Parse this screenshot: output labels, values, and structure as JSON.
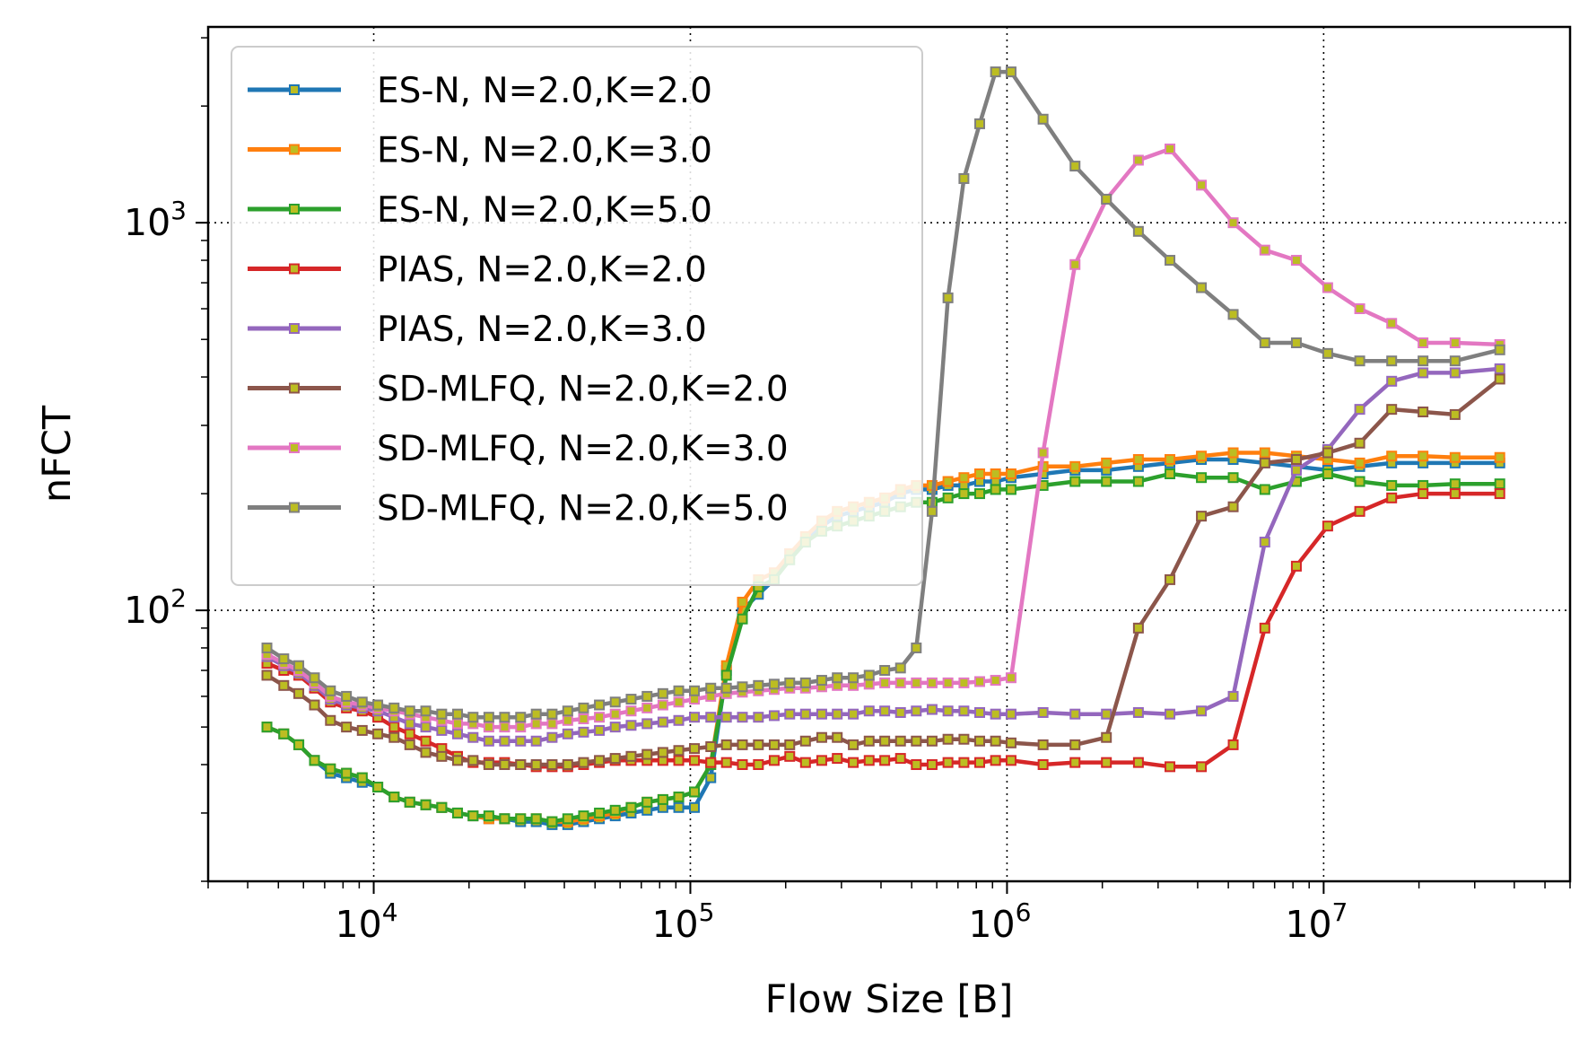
{
  "chart_data": {
    "type": "line",
    "xlabel": "Flow Size [B]",
    "ylabel": "nFCT",
    "xscale": "log",
    "yscale": "log",
    "xlim": [
      3000,
      60000000
    ],
    "ylim": [
      20,
      3200
    ],
    "x_ticks": [
      {
        "value": 10000,
        "base": "10",
        "exp": "4"
      },
      {
        "value": 100000,
        "base": "10",
        "exp": "5"
      },
      {
        "value": 1000000,
        "base": "10",
        "exp": "6"
      },
      {
        "value": 10000000,
        "base": "10",
        "exp": "7"
      }
    ],
    "y_ticks": [
      {
        "value": 100,
        "base": "10",
        "exp": "2"
      },
      {
        "value": 1000,
        "base": "10",
        "exp": "3"
      }
    ],
    "grid": true,
    "legend_position": "upper-left",
    "marker_color": "#bcbd22",
    "x": [
      4600,
      5200,
      5800,
      6500,
      7300,
      8200,
      9200,
      10300,
      11600,
      13000,
      14600,
      16400,
      18400,
      20600,
      23100,
      25900,
      29100,
      32600,
      36600,
      41000,
      46000,
      51600,
      57900,
      65000,
      73000,
      81900,
      91900,
      103000,
      116000,
      130000,
      146000,
      164000,
      184000,
      206000,
      231000,
      260000,
      291000,
      327000,
      367000,
      411000,
      461000,
      517000,
      580000,
      651000,
      731000,
      820000,
      920000,
      1030000,
      1300000,
      1640000,
      2060000,
      2600000,
      3270000,
      4110000,
      5180000,
      6520000,
      8200000,
      10300000,
      13000000,
      16400000,
      20600000,
      26000000,
      36000000
    ],
    "series": [
      {
        "name": "ES-N, N=2.0,K=2.0",
        "color": "#1f77b4",
        "values": [
          50,
          48,
          45,
          41,
          38,
          37,
          36,
          35,
          33,
          32,
          31.5,
          31,
          30,
          29.5,
          29,
          29,
          28.5,
          28.5,
          28,
          28,
          28.5,
          29,
          29.5,
          30,
          30.5,
          31,
          31,
          31,
          37,
          70,
          100,
          110,
          120,
          140,
          150,
          165,
          175,
          180,
          185,
          190,
          200,
          205,
          205,
          210,
          210,
          215,
          215,
          220,
          225,
          230,
          230,
          235,
          240,
          245,
          245,
          240,
          235,
          230,
          235,
          240,
          240,
          240,
          240
        ]
      },
      {
        "name": "ES-N, N=2.0,K=3.0",
        "color": "#ff7f0e",
        "values": [
          50,
          48,
          45,
          41,
          39,
          38,
          37,
          35,
          33,
          32,
          31.5,
          31,
          30,
          29.5,
          29,
          29,
          29,
          29,
          28.5,
          28.5,
          29,
          29.5,
          30,
          31,
          32,
          32.5,
          33,
          34,
          40,
          72,
          105,
          120,
          125,
          140,
          155,
          170,
          180,
          185,
          190,
          195,
          205,
          210,
          210,
          215,
          220,
          225,
          225,
          225,
          235,
          235,
          240,
          245,
          245,
          250,
          255,
          255,
          250,
          245,
          240,
          250,
          250,
          248,
          248
        ]
      },
      {
        "name": "ES-N, N=2.0,K=5.0",
        "color": "#2ca02c",
        "values": [
          50,
          48,
          45,
          41,
          39,
          38,
          37,
          35,
          33,
          32,
          31.5,
          31,
          30,
          29.5,
          29.5,
          29,
          29,
          29,
          28.5,
          29,
          29.5,
          30,
          30.5,
          31,
          32,
          32.5,
          33,
          34,
          40,
          68,
          95,
          115,
          120,
          135,
          150,
          160,
          165,
          170,
          175,
          180,
          185,
          190,
          190,
          195,
          200,
          200,
          205,
          205,
          210,
          215,
          215,
          215,
          225,
          220,
          220,
          205,
          215,
          225,
          215,
          210,
          210,
          212,
          212
        ]
      },
      {
        "name": "PIAS, N=2.0,K=2.0",
        "color": "#d62728",
        "values": [
          73,
          70,
          68,
          63,
          58,
          56,
          55,
          53,
          50,
          48,
          46,
          44,
          42,
          40.5,
          40.5,
          40.5,
          40,
          39.5,
          39.5,
          39.5,
          40,
          40.5,
          41,
          41,
          41,
          41,
          41,
          41,
          40.5,
          40.5,
          40,
          40,
          41,
          42,
          40.5,
          41,
          41.5,
          40.5,
          41,
          41,
          41.5,
          40,
          40,
          40.5,
          40.5,
          40.5,
          41,
          41,
          40,
          40.5,
          40.5,
          40.5,
          39.5,
          39.5,
          45,
          90,
          130,
          165,
          180,
          195,
          200,
          200,
          200
        ]
      },
      {
        "name": "PIAS, N=2.0,K=3.0",
        "color": "#9467bd",
        "values": [
          76,
          72,
          69,
          64,
          59,
          57,
          56,
          55,
          53,
          51,
          50,
          49,
          48,
          47,
          46,
          46,
          46,
          46,
          47,
          48,
          48.5,
          49,
          50,
          50.5,
          51,
          51.5,
          52,
          53,
          53,
          53,
          53,
          53,
          53.5,
          54,
          54,
          54,
          54,
          54,
          55,
          55,
          54.5,
          55,
          55.5,
          55,
          55,
          54.5,
          54,
          54,
          54.5,
          54,
          54,
          54.5,
          54,
          55,
          60,
          150,
          230,
          260,
          330,
          390,
          410,
          410,
          420
        ]
      },
      {
        "name": "SD-MLFQ, N=2.0,K=2.0",
        "color": "#8c564b",
        "values": [
          68,
          64,
          61,
          57,
          52,
          50,
          49,
          48,
          47,
          45,
          43,
          42,
          41,
          41,
          40,
          40,
          40,
          40,
          40,
          40,
          40.5,
          41,
          41.5,
          42,
          42.5,
          43,
          43.5,
          44,
          44.5,
          45,
          45,
          45,
          45,
          45,
          46,
          47,
          47,
          45,
          46,
          46,
          46,
          46,
          46,
          46.5,
          46.5,
          46,
          46,
          45.5,
          45,
          45,
          47,
          90,
          120,
          175,
          185,
          240,
          245,
          255,
          270,
          330,
          325,
          320,
          395
        ]
      },
      {
        "name": "SD-MLFQ, N=2.0,K=3.0",
        "color": "#e377c2",
        "values": [
          77,
          73,
          70,
          65,
          60,
          58,
          57,
          56,
          55,
          54,
          53,
          52,
          51,
          51,
          50,
          50,
          50,
          51,
          51,
          52,
          52.5,
          53,
          54,
          55,
          56,
          57,
          58,
          59,
          60,
          61,
          61.5,
          62,
          62.5,
          63,
          63,
          63.5,
          64,
          64,
          64.5,
          65,
          65,
          65,
          65,
          65,
          65,
          65.5,
          66,
          67,
          255,
          780,
          1150,
          1450,
          1550,
          1250,
          1000,
          850,
          800,
          680,
          600,
          550,
          490,
          490,
          485
        ]
      },
      {
        "name": "SD-MLFQ, N=2.0,K=5.0",
        "color": "#7f7f7f",
        "values": [
          80,
          75,
          72,
          67,
          62,
          60,
          58,
          57,
          56,
          55,
          55,
          54,
          54,
          53,
          53,
          53,
          53,
          54,
          54,
          55,
          56,
          57,
          58,
          59,
          60,
          61,
          62,
          62,
          63,
          63,
          63.5,
          64,
          64.5,
          65,
          65,
          66,
          67,
          67,
          68,
          70,
          71,
          80,
          180,
          640,
          1300,
          1800,
          2450,
          2450,
          1850,
          1400,
          1150,
          950,
          800,
          680,
          580,
          490,
          490,
          460,
          440,
          440,
          440,
          440,
          470
        ]
      }
    ]
  }
}
